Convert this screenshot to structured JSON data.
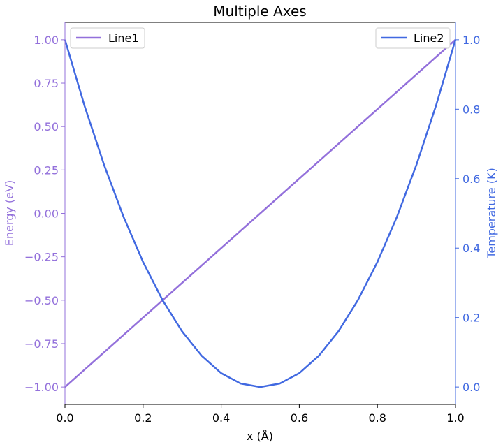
{
  "chart_data": {
    "type": "line",
    "title": "Multiple Axes",
    "xlabel": "x (Å)",
    "xlim": [
      0.0,
      1.0
    ],
    "xticks": [
      "0.0",
      "0.2",
      "0.4",
      "0.6",
      "0.8",
      "1.0"
    ],
    "left_axis": {
      "label": "Energy (eV)",
      "color": "#9370DB",
      "ylim": [
        -1.1,
        1.1
      ],
      "ticks": [
        "−1.00",
        "−0.75",
        "−0.50",
        "−0.25",
        "0.00",
        "0.25",
        "0.50",
        "0.75",
        "1.00"
      ]
    },
    "right_axis": {
      "label": "Temperature (K)",
      "color": "#4169E1",
      "ylim": [
        -0.05,
        1.05
      ],
      "ticks": [
        "0.0",
        "0.2",
        "0.4",
        "0.6",
        "0.8",
        "1.0"
      ]
    },
    "grid": false,
    "series": [
      {
        "name": "Line1",
        "axis": "left",
        "color": "#9370DB",
        "x": [
          0.0,
          1.0
        ],
        "y": [
          -1.0,
          1.0
        ],
        "legend_position": "top-left"
      },
      {
        "name": "Line2",
        "axis": "right",
        "color": "#4169E1",
        "x": [
          0.0,
          0.05,
          0.1,
          0.15,
          0.2,
          0.25,
          0.3,
          0.35,
          0.4,
          0.45,
          0.5,
          0.55,
          0.6,
          0.65,
          0.7,
          0.75,
          0.8,
          0.85,
          0.9,
          0.95,
          1.0
        ],
        "y": [
          1.0,
          0.81,
          0.64,
          0.49,
          0.36,
          0.25,
          0.16,
          0.09,
          0.04,
          0.01,
          0.0,
          0.01,
          0.04,
          0.09,
          0.16,
          0.25,
          0.36,
          0.49,
          0.64,
          0.81,
          1.0
        ],
        "legend_position": "top-right"
      }
    ]
  }
}
